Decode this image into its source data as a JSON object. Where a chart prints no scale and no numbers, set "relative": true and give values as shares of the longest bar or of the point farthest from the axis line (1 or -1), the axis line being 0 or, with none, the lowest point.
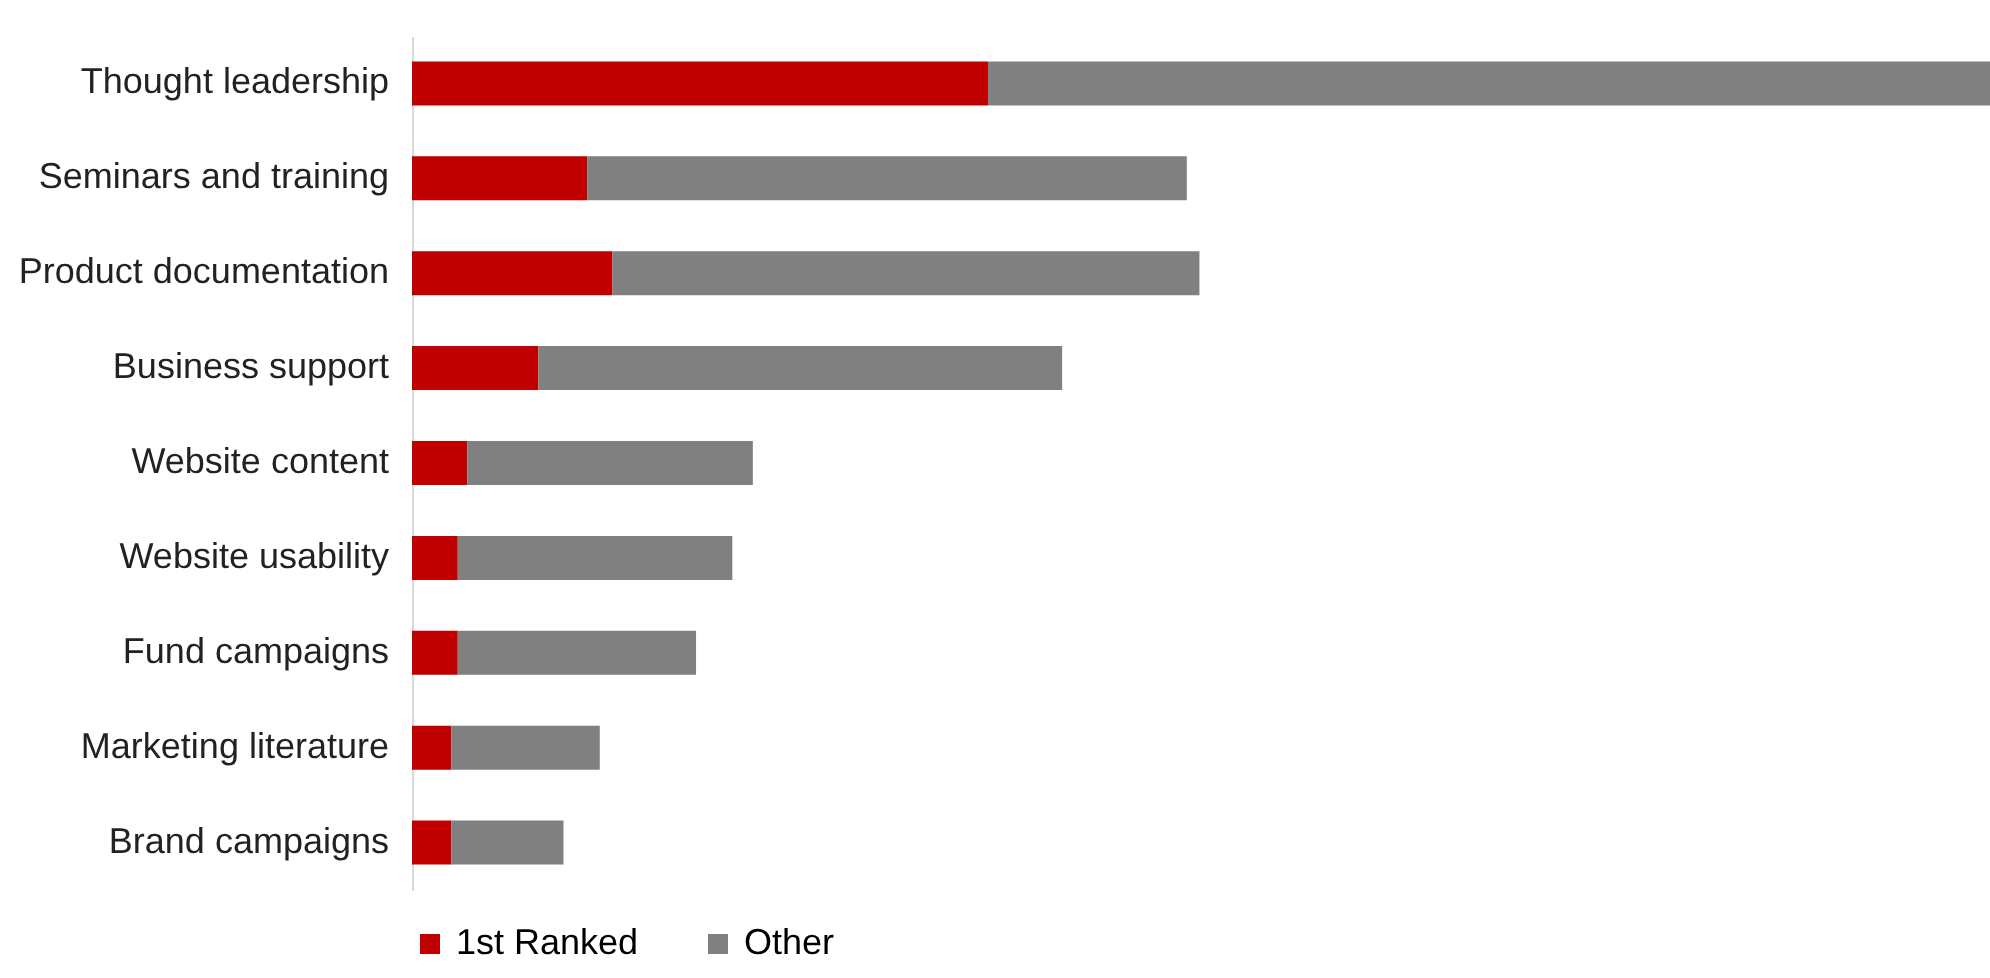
{
  "chart_data": {
    "type": "bar",
    "orientation": "horizontal",
    "stacked": true,
    "relative": true,
    "legend": "bottom",
    "categories": [
      "Thought leadership",
      "Seminars and training",
      "Product documentation",
      "Business support",
      "Website content",
      "Website usability",
      "Fund campaigns",
      "Marketing literature",
      "Brand campaigns"
    ],
    "series": [
      {
        "name": "1st Ranked",
        "color": "#c00000",
        "values": [
          0.365,
          0.111,
          0.127,
          0.08,
          0.035,
          0.029,
          0.029,
          0.025,
          0.025
        ]
      },
      {
        "name": "Other",
        "color": "#808080",
        "values": [
          0.635,
          0.38,
          0.372,
          0.332,
          0.181,
          0.174,
          0.151,
          0.094,
          0.071
        ]
      }
    ]
  }
}
